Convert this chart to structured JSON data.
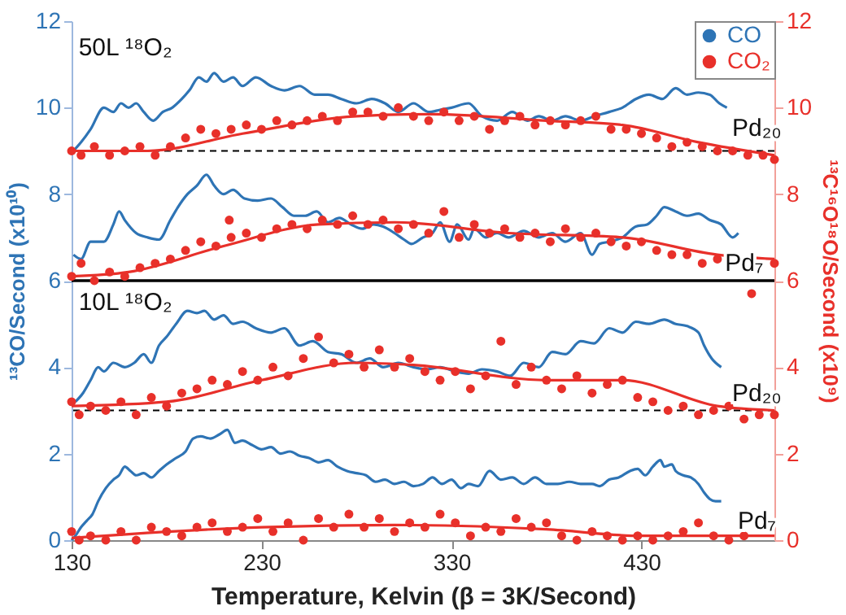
{
  "chart_data": {
    "type": "line",
    "xlabel": "Temperature, Kelvin (β = 3K/Second)",
    "ylabel": "¹³CO/Second (x10¹⁰)",
    "y2label": "¹³C¹⁶O¹⁸O/Second (x10⁹)",
    "xlim": [
      130,
      500
    ],
    "xticks": [
      130,
      230,
      330,
      430
    ],
    "ylim": [
      0,
      12
    ],
    "yticks": [
      0,
      2,
      4,
      6,
      8,
      10,
      12
    ],
    "y2lim": [
      0,
      12
    ],
    "y2ticks": [
      0,
      2,
      4,
      6,
      8,
      10,
      12
    ],
    "legend": "top right",
    "grid": false,
    "series": [
      {
        "name": "CO",
        "color": "#2e74b5",
        "x": [
          131,
          135,
          140,
          147,
          152,
          156,
          160,
          164,
          168,
          173,
          178,
          183,
          188,
          192,
          197,
          201,
          205,
          210,
          215,
          220,
          227,
          235,
          242,
          250,
          258,
          265,
          272,
          280,
          288,
          295,
          302,
          310,
          318,
          324,
          330,
          339,
          346,
          354,
          362,
          370,
          376,
          383,
          390,
          398,
          405,
          413,
          420,
          427,
          434,
          441,
          448,
          454,
          460,
          466,
          471,
          475
        ],
        "values": [
          9.0,
          9.2,
          9.5,
          10.0,
          9.9,
          10.1,
          10.0,
          10.1,
          9.9,
          9.7,
          9.9,
          10.0,
          10.2,
          10.4,
          10.7,
          10.6,
          10.8,
          10.6,
          10.7,
          10.5,
          10.7,
          10.5,
          10.4,
          10.5,
          10.3,
          10.3,
          10.2,
          10.1,
          10.2,
          10.1,
          9.9,
          10.1,
          9.9,
          9.95,
          10.0,
          10.1,
          9.8,
          9.7,
          9.9,
          9.7,
          9.8,
          9.7,
          9.8,
          9.7,
          9.8,
          9.9,
          10.0,
          10.2,
          10.3,
          10.2,
          10.45,
          10.3,
          10.35,
          10.3,
          10.1,
          10.0
        ]
      },
      {
        "color": "#2e74b5",
        "x": [
          131,
          135,
          140,
          147,
          152,
          155,
          158,
          164,
          170,
          176,
          182,
          186,
          191,
          196,
          201,
          205,
          210,
          215,
          221,
          228,
          235,
          241,
          247,
          253,
          259,
          265,
          271,
          277,
          283,
          289,
          294,
          300,
          305,
          309,
          315,
          320,
          324,
          329,
          333,
          339,
          342,
          348,
          354,
          360,
          368,
          376,
          383,
          390,
          398,
          404,
          408,
          413,
          420,
          427,
          433,
          438,
          442,
          448,
          454,
          460,
          466,
          472,
          478,
          481
        ],
        "values": [
          6.6,
          6.5,
          6.9,
          6.9,
          7.3,
          7.6,
          7.4,
          7.1,
          7.0,
          6.95,
          7.4,
          7.7,
          8.0,
          8.2,
          8.45,
          8.2,
          8.0,
          8.1,
          7.9,
          7.85,
          7.9,
          7.7,
          7.5,
          7.5,
          7.6,
          7.35,
          7.45,
          7.3,
          7.2,
          7.3,
          7.25,
          7.1,
          6.95,
          6.85,
          7.0,
          7.1,
          7.35,
          6.9,
          7.3,
          6.95,
          7.2,
          7.0,
          7.1,
          7.0,
          7.15,
          7.0,
          7.1,
          6.9,
          7.1,
          6.6,
          6.85,
          6.9,
          7.0,
          7.25,
          7.3,
          7.5,
          7.7,
          7.6,
          7.5,
          7.55,
          7.4,
          7.3,
          7.0,
          7.1
        ]
      },
      {
        "color": "#2e74b5",
        "x": [
          132,
          136,
          140,
          144,
          147,
          152,
          158,
          163,
          168,
          172,
          176,
          180,
          185,
          191,
          196,
          200,
          205,
          210,
          215,
          220,
          227,
          235,
          242,
          250,
          257,
          265,
          272,
          280,
          287,
          294,
          302,
          310,
          317,
          324,
          332,
          339,
          346,
          354,
          361,
          368,
          376,
          383,
          390,
          398,
          405,
          413,
          420,
          427,
          434,
          442,
          448,
          454,
          460,
          463,
          467,
          472
        ],
        "values": [
          3.2,
          3.4,
          3.7,
          4.0,
          3.9,
          4.1,
          4.0,
          4.1,
          4.3,
          4.1,
          4.5,
          4.7,
          5.0,
          5.3,
          5.25,
          5.3,
          5.1,
          5.2,
          5.0,
          5.05,
          4.9,
          4.8,
          4.9,
          4.5,
          4.6,
          4.35,
          4.3,
          4.1,
          4.2,
          4.0,
          4.1,
          4.0,
          3.95,
          4.0,
          3.9,
          3.85,
          3.95,
          3.9,
          3.8,
          4.1,
          4.0,
          4.35,
          4.3,
          4.6,
          4.55,
          4.9,
          4.8,
          5.05,
          5.0,
          5.1,
          5.0,
          4.95,
          4.8,
          4.5,
          4.2,
          4.0
        ]
      },
      {
        "color": "#2e74b5",
        "x": [
          130,
          132,
          135,
          138,
          141,
          144,
          148,
          152,
          155,
          158,
          161,
          164,
          168,
          172,
          176,
          180,
          185,
          190,
          194,
          198,
          203,
          208,
          212,
          216,
          220,
          225,
          230,
          235,
          240,
          245,
          250,
          255,
          260,
          265,
          270,
          275,
          280,
          285,
          290,
          295,
          300,
          305,
          310,
          315,
          320,
          325,
          330,
          335,
          339,
          344,
          350,
          356,
          362,
          368,
          374,
          380,
          386,
          392,
          398,
          404,
          408,
          413,
          418,
          424,
          428,
          432,
          436,
          440,
          442,
          446,
          448,
          452,
          456,
          460,
          463,
          466,
          469,
          472
        ],
        "values": [
          0.0,
          0.1,
          0.3,
          0.45,
          0.6,
          0.9,
          1.2,
          1.4,
          1.5,
          1.7,
          1.6,
          1.5,
          1.55,
          1.45,
          1.6,
          1.75,
          1.9,
          2.05,
          2.35,
          2.4,
          2.35,
          2.45,
          2.55,
          2.25,
          2.3,
          2.2,
          2.1,
          2.15,
          2.0,
          2.05,
          1.95,
          1.9,
          1.8,
          1.85,
          1.7,
          1.6,
          1.55,
          1.5,
          1.35,
          1.4,
          1.3,
          1.35,
          1.25,
          1.3,
          1.45,
          1.3,
          1.4,
          1.2,
          1.3,
          1.25,
          1.6,
          1.4,
          1.45,
          1.3,
          1.45,
          1.3,
          1.3,
          1.35,
          1.3,
          1.3,
          1.25,
          1.4,
          1.45,
          1.6,
          1.65,
          1.5,
          1.7,
          1.85,
          1.7,
          1.75,
          1.6,
          1.5,
          1.45,
          1.3,
          1.1,
          0.95,
          0.9,
          0.9
        ]
      },
      {
        "name": "CO₂",
        "type": "scatter",
        "marker": "circle",
        "axis": "y2",
        "color": "#e8302a",
        "x": [
          130,
          135,
          142,
          150,
          158,
          166,
          174,
          182,
          190,
          198,
          206,
          214,
          222,
          230,
          238,
          246,
          254,
          262,
          270,
          278,
          286,
          294,
          302,
          310,
          318,
          326,
          334,
          342,
          350,
          358,
          366,
          374,
          382,
          390,
          398,
          406,
          414,
          422,
          430,
          438,
          446,
          454,
          462,
          470,
          478,
          486,
          494,
          500
        ],
        "values": [
          9.0,
          8.9,
          9.1,
          8.9,
          9.0,
          9.1,
          8.9,
          9.1,
          9.3,
          9.5,
          9.4,
          9.5,
          9.6,
          9.5,
          9.7,
          9.6,
          9.7,
          9.8,
          9.7,
          9.9,
          9.9,
          9.8,
          10.0,
          9.8,
          9.7,
          9.9,
          9.7,
          9.8,
          9.5,
          9.7,
          9.8,
          9.6,
          9.7,
          9.6,
          9.7,
          9.8,
          9.5,
          9.5,
          9.4,
          9.3,
          9.1,
          9.2,
          9.1,
          9.0,
          9.0,
          8.9,
          8.9,
          8.8
        ]
      },
      {
        "axis": "y2",
        "color": "#e8302a",
        "x": [
          130,
          170,
          220,
          280,
          320,
          380,
          420,
          460,
          500
        ],
        "values": [
          9.0,
          9.0,
          9.4,
          9.8,
          9.85,
          9.7,
          9.6,
          9.2,
          8.9
        ]
      },
      {
        "type": "scatter",
        "marker": "circle",
        "axis": "y2",
        "color": "#e8302a",
        "x": [
          130,
          135,
          142,
          150,
          158,
          166,
          174,
          182,
          190,
          198,
          206,
          213,
          214,
          222,
          230,
          238,
          246,
          254,
          262,
          270,
          278,
          286,
          294,
          302,
          310,
          318,
          326,
          334,
          342,
          350,
          358,
          366,
          374,
          382,
          390,
          398,
          406,
          414,
          422,
          430,
          438,
          446,
          454,
          462,
          470,
          478,
          488,
          494,
          500
        ],
        "values": [
          6.1,
          6.4,
          6.0,
          6.2,
          6.1,
          6.3,
          6.4,
          6.5,
          6.7,
          6.9,
          6.8,
          7.4,
          7.0,
          7.1,
          7.0,
          7.2,
          7.3,
          7.2,
          7.4,
          7.3,
          7.5,
          7.3,
          7.4,
          7.2,
          7.3,
          7.1,
          7.6,
          7.0,
          7.3,
          7.1,
          7.2,
          7.0,
          7.1,
          6.9,
          7.2,
          7.0,
          7.1,
          6.9,
          6.8,
          6.9,
          6.7,
          6.6,
          6.6,
          6.4,
          6.5,
          null,
          5.7,
          null,
          6.4
        ]
      },
      {
        "axis": "y2",
        "color": "#e8302a",
        "x": [
          130,
          160,
          210,
          260,
          300,
          360,
          420,
          470,
          500
        ],
        "values": [
          6.1,
          6.2,
          6.8,
          7.3,
          7.35,
          7.1,
          7.0,
          6.6,
          6.5
        ]
      },
      {
        "type": "scatter",
        "marker": "circle",
        "axis": "y2",
        "color": "#e8302a",
        "x": [
          130,
          134,
          140,
          148,
          156,
          164,
          172,
          180,
          188,
          196,
          204,
          212,
          220,
          228,
          236,
          244,
          252,
          260,
          268,
          276,
          284,
          292,
          300,
          308,
          316,
          324,
          332,
          340,
          348,
          356,
          364,
          372,
          380,
          388,
          396,
          404,
          412,
          420,
          428,
          436,
          444,
          452,
          460,
          468,
          476,
          484,
          492,
          500
        ],
        "values": [
          3.2,
          2.9,
          3.1,
          3.0,
          3.2,
          2.9,
          3.3,
          3.1,
          3.4,
          3.5,
          3.7,
          3.6,
          3.9,
          3.7,
          4.0,
          3.8,
          4.2,
          4.7,
          4.1,
          4.3,
          4.0,
          4.4,
          4.0,
          4.2,
          3.9,
          3.7,
          3.9,
          3.5,
          3.8,
          4.6,
          3.6,
          4.0,
          3.7,
          3.5,
          3.8,
          3.4,
          3.6,
          3.7,
          3.3,
          3.2,
          3.0,
          3.1,
          2.9,
          3.0,
          3.1,
          2.8,
          2.9,
          2.9
        ]
      },
      {
        "axis": "y2",
        "color": "#e8302a",
        "x": [
          130,
          180,
          230,
          280,
          310,
          380,
          420,
          470,
          500
        ],
        "values": [
          3.1,
          3.2,
          3.7,
          4.1,
          4.05,
          3.7,
          3.7,
          3.1,
          3.0
        ]
      },
      {
        "type": "scatter",
        "marker": "circle",
        "axis": "y2",
        "color": "#e8302a",
        "x": [
          130,
          134,
          140,
          148,
          156,
          164,
          172,
          180,
          188,
          196,
          204,
          212,
          220,
          228,
          236,
          244,
          252,
          260,
          268,
          276,
          284,
          292,
          300,
          308,
          316,
          324,
          332,
          340,
          348,
          356,
          364,
          372,
          380,
          388,
          396,
          404,
          412,
          420,
          428,
          436,
          444,
          452,
          460,
          468,
          476,
          484
        ],
        "values": [
          0.2,
          0.0,
          0.1,
          0.0,
          0.2,
          0.0,
          0.3,
          0.2,
          0.1,
          0.3,
          0.4,
          0.2,
          0.3,
          0.5,
          0.2,
          0.4,
          0.0,
          0.5,
          0.3,
          0.6,
          0.3,
          0.5,
          0.2,
          0.4,
          0.3,
          0.6,
          0.4,
          0.1,
          0.3,
          0.2,
          0.5,
          0.3,
          0.4,
          0.1,
          0.0,
          0.2,
          0.1,
          0.0,
          0.1,
          0.0,
          0.1,
          0.2,
          0.4,
          0.1,
          0.0,
          0.1
        ]
      },
      {
        "axis": "y2",
        "color": "#e8302a",
        "x": [
          130,
          230,
          300,
          380,
          430,
          500
        ],
        "values": [
          0.05,
          0.3,
          0.35,
          0.25,
          0.1,
          0.1
        ]
      }
    ],
    "ref_lines": [
      {
        "axis": "y",
        "value": 9,
        "line_style": "dashed",
        "color": "#000000"
      },
      {
        "axis": "y",
        "value": 3,
        "line_style": "dashed",
        "color": "#000000"
      },
      {
        "axis": "y",
        "value": 6,
        "line_style": "solid",
        "color": "#000000"
      }
    ],
    "annotations": [
      "50L ¹⁸O₂",
      "10L ¹⁸O₂",
      "Pd₂₀",
      "Pd₇",
      "Pd₂₀",
      "Pd₇"
    ]
  }
}
